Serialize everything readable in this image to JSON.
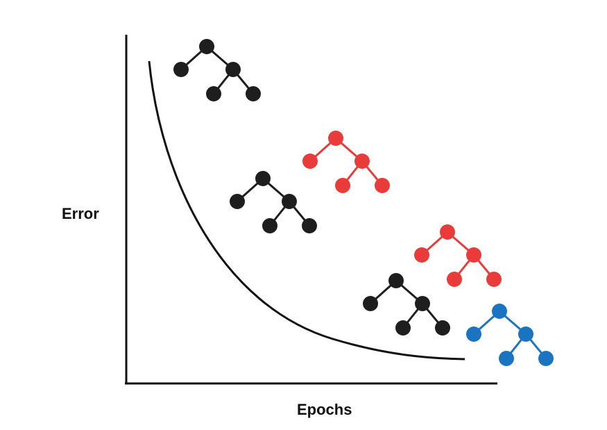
{
  "labels": {
    "y_axis": "Error",
    "x_axis": "Epochs"
  },
  "colors": {
    "axis": "#111111",
    "curve": "#111111",
    "tree_black": "#1f1e1f",
    "tree_red": "#ea3b3b",
    "tree_blue": "#1b74c2"
  },
  "trees": [
    {
      "name": "tree-black-1",
      "color_key": "tree_black"
    },
    {
      "name": "tree-black-2",
      "color_key": "tree_black"
    },
    {
      "name": "tree-red-1",
      "color_key": "tree_red"
    },
    {
      "name": "tree-red-2",
      "color_key": "tree_red"
    },
    {
      "name": "tree-black-3",
      "color_key": "tree_black"
    },
    {
      "name": "tree-blue-1",
      "color_key": "tree_blue"
    }
  ]
}
